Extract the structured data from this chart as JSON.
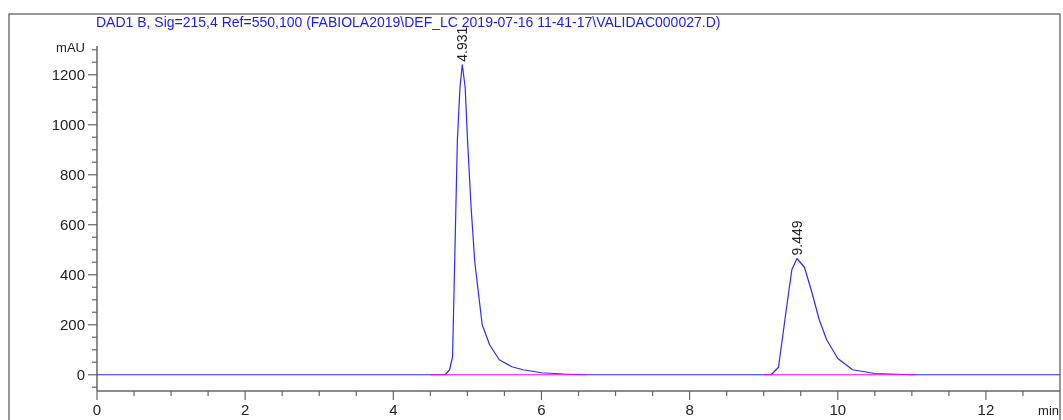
{
  "chart_data": {
    "type": "line",
    "title": "DAD1 B, Sig=215,4 Ref=550,100 (FABIOLA2019\\DEF_LC 2019-07-16 11-41-17\\VALIDAC000027.D)",
    "xlabel": "min",
    "ylabel": "mAU",
    "xlim": [
      0,
      13
    ],
    "ylim": [
      -65,
      1315
    ],
    "xticks": [
      0,
      {
        "value": 0.5,
        "label": null
      },
      {
        "value": 1,
        "label": null
      },
      {
        "value": 1.5,
        "label": null
      },
      2,
      {
        "value": 2.5,
        "label": null
      },
      {
        "value": 3,
        "label": null
      },
      {
        "value": 3.5,
        "label": null
      },
      4,
      {
        "value": 4.5,
        "label": null
      },
      {
        "value": 5,
        "label": null
      },
      {
        "value": 5.5,
        "label": null
      },
      6,
      {
        "value": 6.5,
        "label": null
      },
      {
        "value": 7,
        "label": null
      },
      {
        "value": 7.5,
        "label": null
      },
      8,
      {
        "value": 8.5,
        "label": null
      },
      {
        "value": 9,
        "label": null
      },
      {
        "value": 9.5,
        "label": null
      },
      10,
      {
        "value": 10.5,
        "label": null
      },
      {
        "value": 11,
        "label": null
      },
      {
        "value": 11.5,
        "label": null
      },
      12,
      {
        "value": 12.5,
        "label": null
      }
    ],
    "yticks": [
      {
        "value": -50,
        "label": null
      },
      0,
      {
        "value": 50,
        "label": null
      },
      {
        "value": 100,
        "label": null
      },
      {
        "value": 150,
        "label": null
      },
      200,
      {
        "value": 250,
        "label": null
      },
      {
        "value": 300,
        "label": null
      },
      {
        "value": 350,
        "label": null
      },
      400,
      {
        "value": 450,
        "label": null
      },
      {
        "value": 500,
        "label": null
      },
      {
        "value": 550,
        "label": null
      },
      600,
      {
        "value": 650,
        "label": null
      },
      {
        "value": 700,
        "label": null
      },
      {
        "value": 750,
        "label": null
      },
      800,
      {
        "value": 850,
        "label": null
      },
      {
        "value": 900,
        "label": null
      },
      {
        "value": 950,
        "label": null
      },
      1000,
      {
        "value": 1050,
        "label": null
      },
      {
        "value": 1100,
        "label": null
      },
      {
        "value": 1150,
        "label": null
      },
      1200,
      {
        "value": 1250,
        "label": null
      },
      {
        "value": 1300,
        "label": null
      }
    ],
    "grid": false,
    "annotations": [
      {
        "text": "4.931",
        "x": 4.931,
        "y": 1240
      },
      {
        "text": "9.449",
        "x": 9.449,
        "y": 465
      }
    ],
    "series": [
      {
        "color": "#2b2bff",
        "x": [
          0,
          4.7,
          4.76,
          4.8,
          4.865,
          4.9,
          4.931,
          4.97,
          5.0,
          5.05,
          5.1,
          5.2,
          5.3,
          5.43,
          5.6,
          5.75,
          6.0,
          6.3,
          6.6,
          9.1,
          9.2,
          9.3,
          9.38,
          9.449,
          9.55,
          9.65,
          9.75,
          9.85,
          10.0,
          10.2,
          10.5,
          11.0,
          13
        ],
        "values": [
          0,
          0,
          20,
          72,
          940,
          1150,
          1240,
          1150,
          950,
          670,
          450,
          200,
          120,
          60,
          32,
          20,
          8,
          3,
          0,
          0,
          30,
          250,
          420,
          465,
          430,
          330,
          220,
          140,
          65,
          20,
          5,
          0,
          0
        ]
      },
      {
        "color": "#ff00ff",
        "x": [
          4.5,
          6.6,
          6.61,
          9.0,
          11.05
        ],
        "values": [
          0,
          0,
          null,
          0,
          0
        ]
      }
    ]
  }
}
